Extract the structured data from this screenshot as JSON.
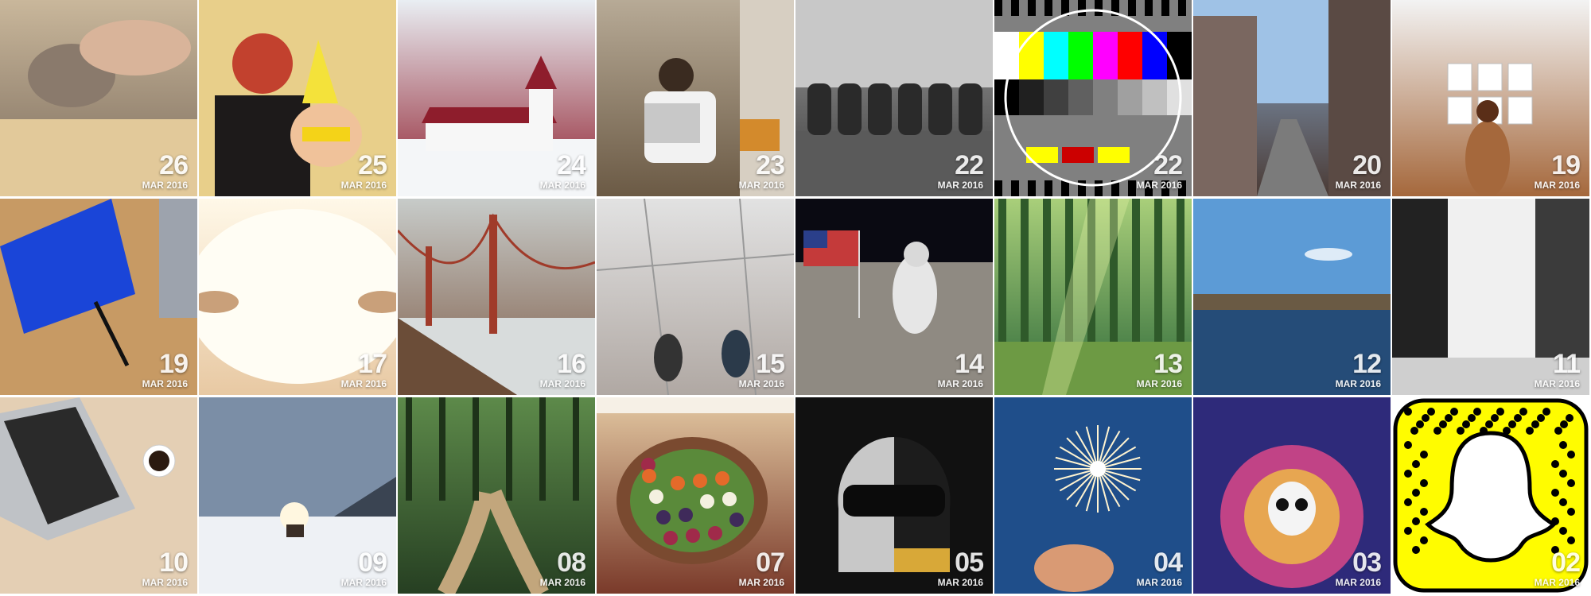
{
  "posts": [
    {
      "day": "26",
      "month": "MAR 2016",
      "image": "clay-hands-photo",
      "colors": [
        "#c9b79b",
        "#7a6a5b"
      ]
    },
    {
      "day": "25",
      "month": "MAR 2016",
      "image": "costume-kids-photo",
      "colors": [
        "#e6b93a",
        "#3a2a1e"
      ]
    },
    {
      "day": "24",
      "month": "MAR 2016",
      "image": "church-snow-photo",
      "colors": [
        "#e9eef3",
        "#8e1d2c"
      ]
    },
    {
      "day": "23",
      "month": "MAR 2016",
      "image": "laptop-man-photo",
      "colors": [
        "#b7aa96",
        "#6b5a45"
      ]
    },
    {
      "day": "22",
      "month": "MAR 2016",
      "image": "people-bridge-bw-photo",
      "colors": [
        "#9e9e9e",
        "#3c3c3c"
      ]
    },
    {
      "day": "22",
      "month": "MAR 2016",
      "image": "tv-test-pattern",
      "colors": [
        "#ffe600",
        "#1e1e1e"
      ]
    },
    {
      "day": "20",
      "month": "MAR 2016",
      "image": "alley-street-photo",
      "colors": [
        "#8fb3d9",
        "#4a3a34"
      ]
    },
    {
      "day": "19",
      "month": "MAR 2016",
      "image": "gallery-woman-photo",
      "colors": [
        "#f3f3f3",
        "#a5683c"
      ]
    },
    {
      "day": "19",
      "month": "MAR 2016",
      "image": "blue-book-desk-photo",
      "colors": [
        "#c99a62",
        "#1a45d8"
      ]
    },
    {
      "day": "17",
      "month": "MAR 2016",
      "image": "eyes-closeup-photo",
      "colors": [
        "#fff8e8",
        "#e8c9a3"
      ]
    },
    {
      "day": "16",
      "month": "MAR 2016",
      "image": "golden-gate-fog-photo",
      "colors": [
        "#c7cbc9",
        "#7d5a45"
      ]
    },
    {
      "day": "15",
      "month": "MAR 2016",
      "image": "passion-floor-photo",
      "colors": [
        "#e2e2e2",
        "#b0a8a3"
      ]
    },
    {
      "day": "14",
      "month": "MAR 2016",
      "image": "moon-landing-photo",
      "colors": [
        "#2a2a34",
        "#8e8e8e"
      ]
    },
    {
      "day": "13",
      "month": "MAR 2016",
      "image": "green-forest-game",
      "colors": [
        "#a9cf7a",
        "#2f6a3a"
      ]
    },
    {
      "day": "12",
      "month": "MAR 2016",
      "image": "lake-city-photo",
      "colors": [
        "#6ea3d6",
        "#2f5b86"
      ]
    },
    {
      "day": "11",
      "month": "MAR 2016",
      "image": "waterfall-bw-photo",
      "colors": [
        "#d9d9d9",
        "#3f3f3f"
      ]
    },
    {
      "day": "10",
      "month": "MAR 2016",
      "image": "laptop-coffee-photo",
      "colors": [
        "#e0cbb0",
        "#3a3a3a"
      ]
    },
    {
      "day": "09",
      "month": "MAR 2016",
      "image": "winter-sunset-photo",
      "colors": [
        "#c9d3de",
        "#4a5561"
      ]
    },
    {
      "day": "08",
      "month": "MAR 2016",
      "image": "forest-path-photo",
      "colors": [
        "#5d8a4a",
        "#263f22"
      ]
    },
    {
      "day": "07",
      "month": "MAR 2016",
      "image": "salad-bowl-photo",
      "colors": [
        "#e3c8a2",
        "#7a3a2a"
      ]
    },
    {
      "day": "05",
      "month": "MAR 2016",
      "image": "daft-punk-album-cover",
      "colors": [
        "#141414",
        "#c9a24a"
      ]
    },
    {
      "day": "04",
      "month": "MAR 2016",
      "image": "sparkler-photo",
      "colors": [
        "#1e4f8c",
        "#e8e2d0"
      ]
    },
    {
      "day": "03",
      "month": "MAR 2016",
      "image": "out-there-game-cover",
      "colors": [
        "#2a2a7a",
        "#e93b8a"
      ]
    },
    {
      "day": "02",
      "month": "MAR 2016",
      "image": "snapcode-ghost",
      "colors": [
        "#fffc00",
        "#000000"
      ]
    }
  ]
}
